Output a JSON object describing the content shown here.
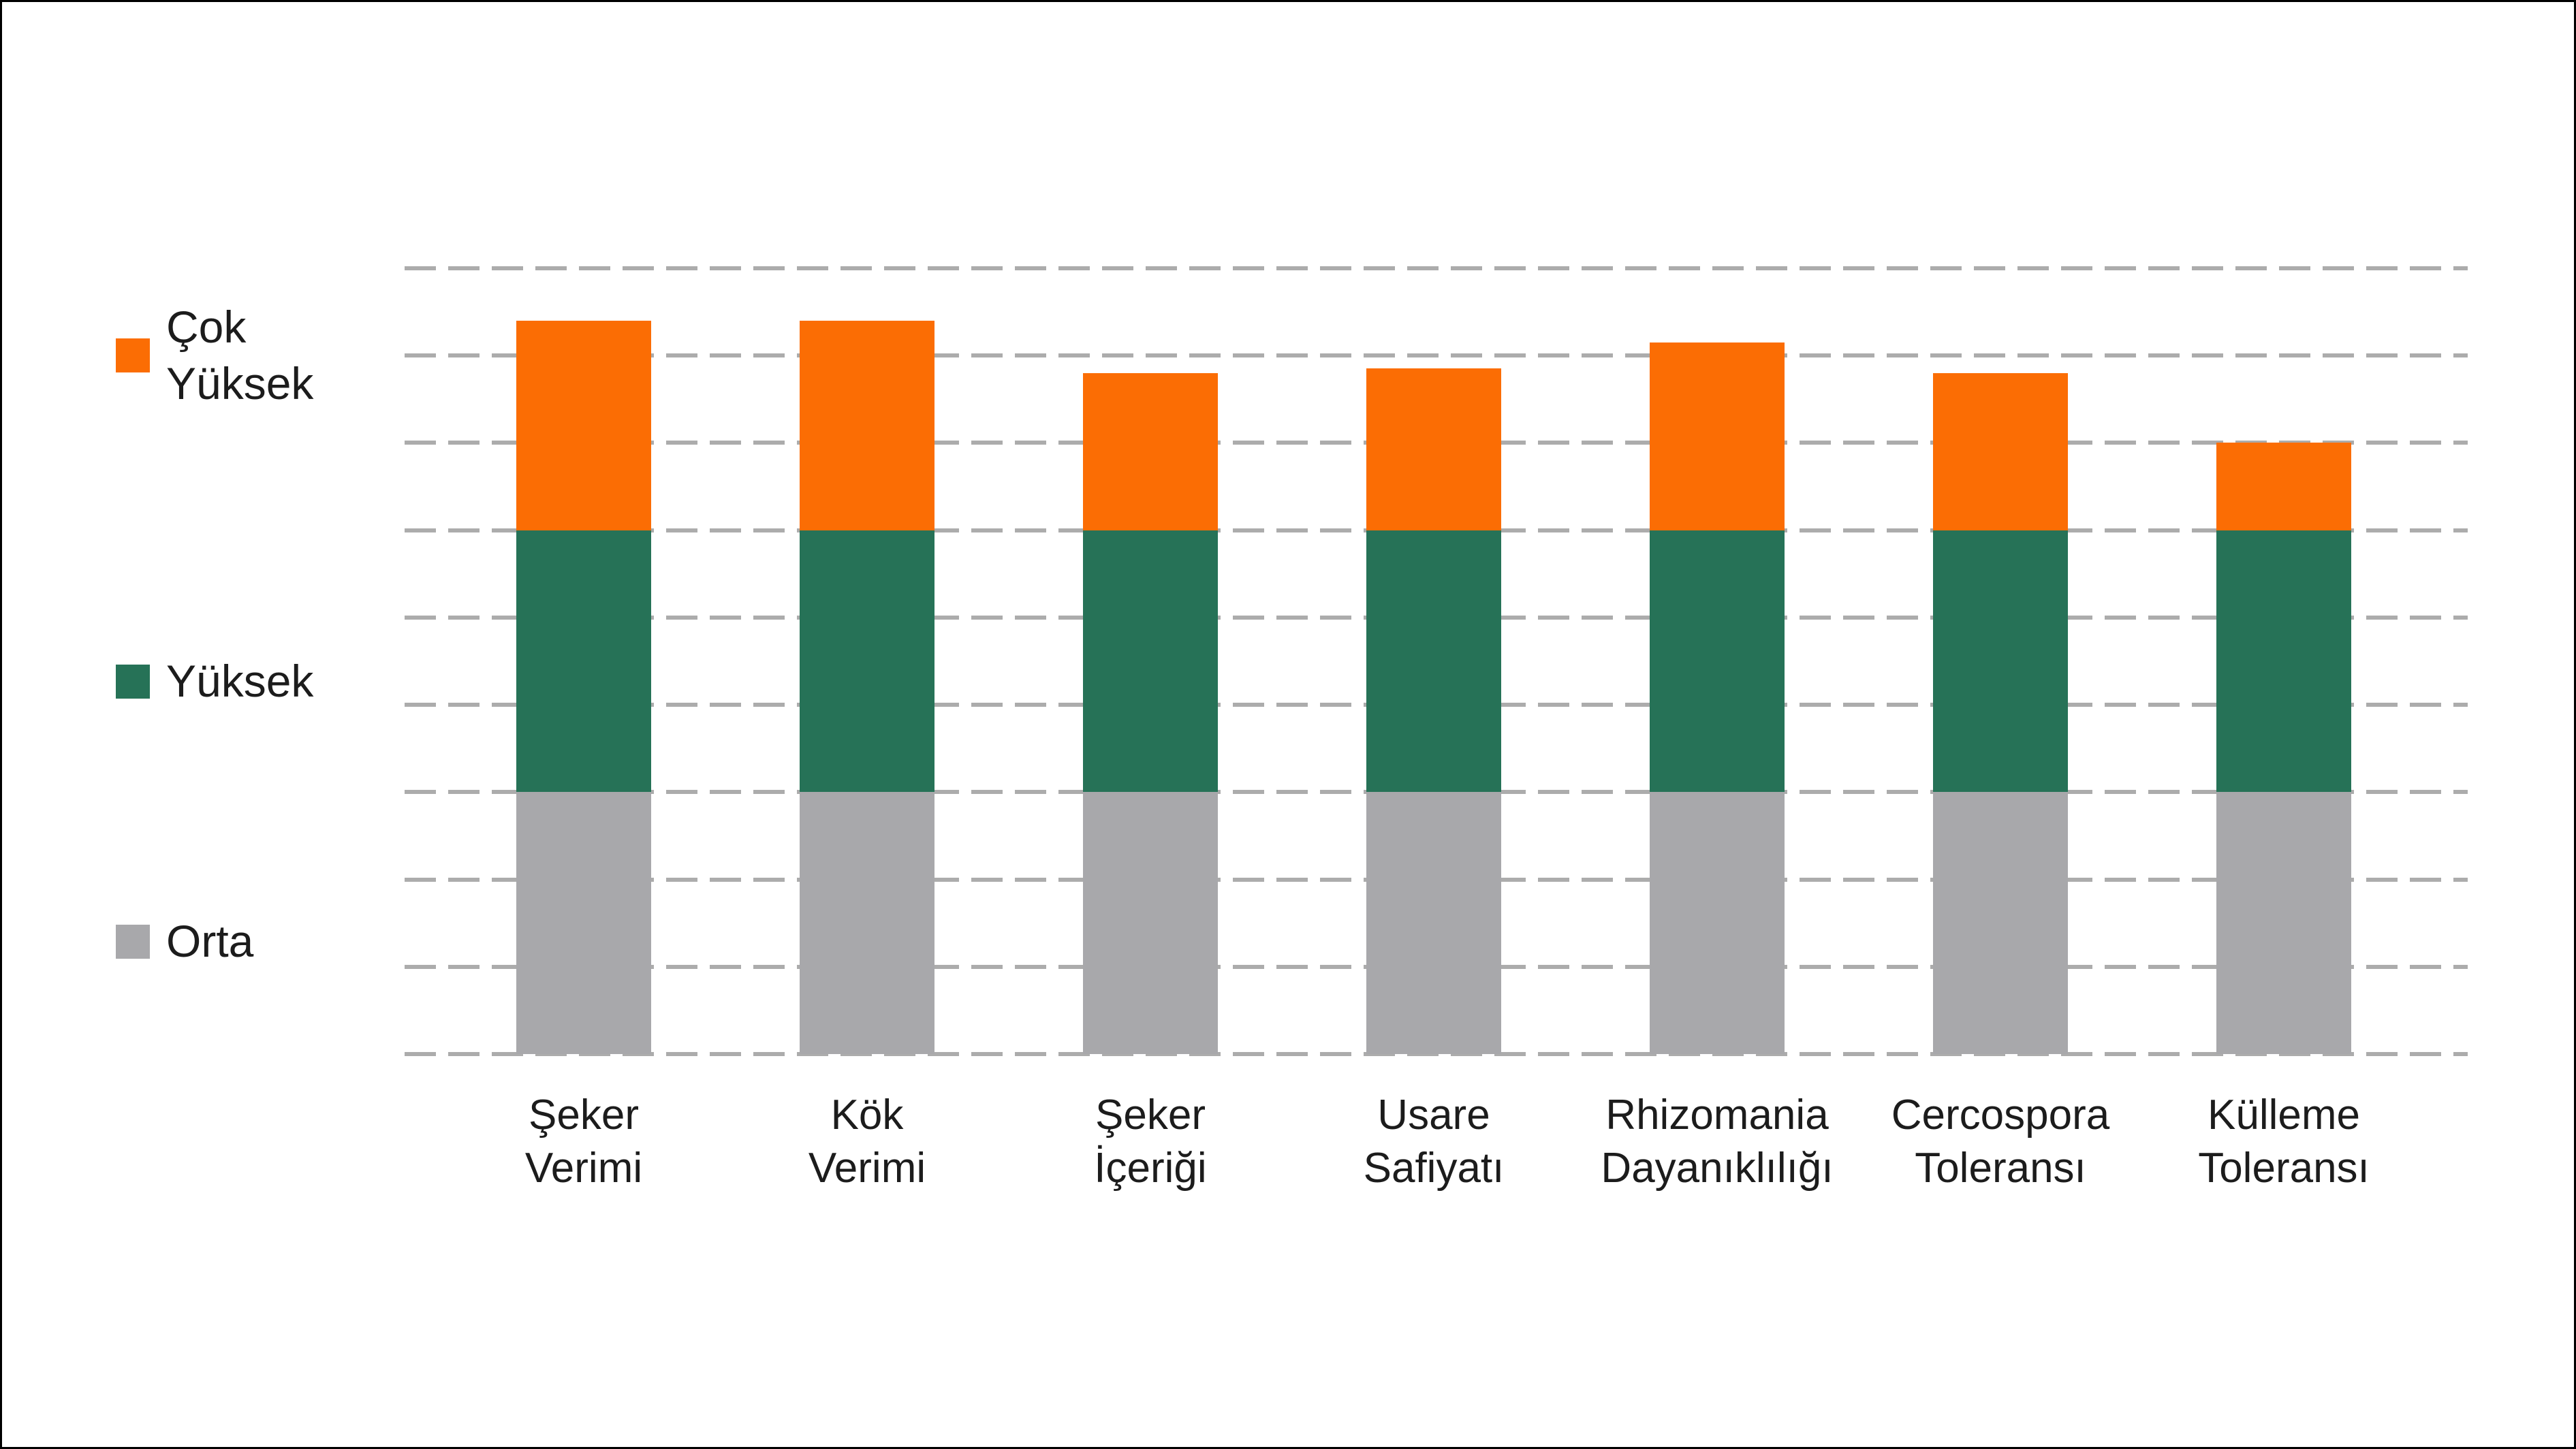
{
  "chart_data": {
    "type": "bar",
    "stacked": true,
    "title": "",
    "xlabel": "",
    "ylabel": "",
    "y_axis_tick_labels_visible": false,
    "ylim": [
      0,
      9
    ],
    "categories": [
      "Şeker\nVerimi",
      "Kök\nVerimi",
      "Şeker\nİçeriği",
      "Usare\nSafiyatı",
      "Rhizomania\nDayanıklılığı",
      "Cercospora\nToleransı",
      "Külleme\nToleransı"
    ],
    "series": [
      {
        "name": "Orta",
        "color": "#A8A8AB",
        "values": [
          3,
          3,
          3,
          3,
          3,
          3,
          3
        ]
      },
      {
        "name": "Yüksek",
        "color": "#267257",
        "values": [
          3,
          3,
          3,
          3,
          3,
          3,
          3
        ]
      },
      {
        "name": "Çok Yüksek",
        "color": "#FB6D04",
        "values": [
          2.4,
          2.4,
          1.8,
          1.85,
          2.15,
          1.8,
          1.0
        ]
      }
    ],
    "stack_totals": [
      8.4,
      8.4,
      7.8,
      7.85,
      8.15,
      7.8,
      7.0
    ],
    "gridlines": {
      "style": "dashed",
      "color": "#ACACAC",
      "values": [
        0,
        1,
        2,
        3,
        4,
        5,
        6,
        7,
        8,
        9
      ]
    },
    "legend": {
      "position": "left",
      "items": [
        {
          "label": "Çok\nYüksek",
          "color": "#FB6D04"
        },
        {
          "label": "Yüksek",
          "color": "#267257"
        },
        {
          "label": "Orta",
          "color": "#A8A8AB"
        }
      ]
    }
  }
}
